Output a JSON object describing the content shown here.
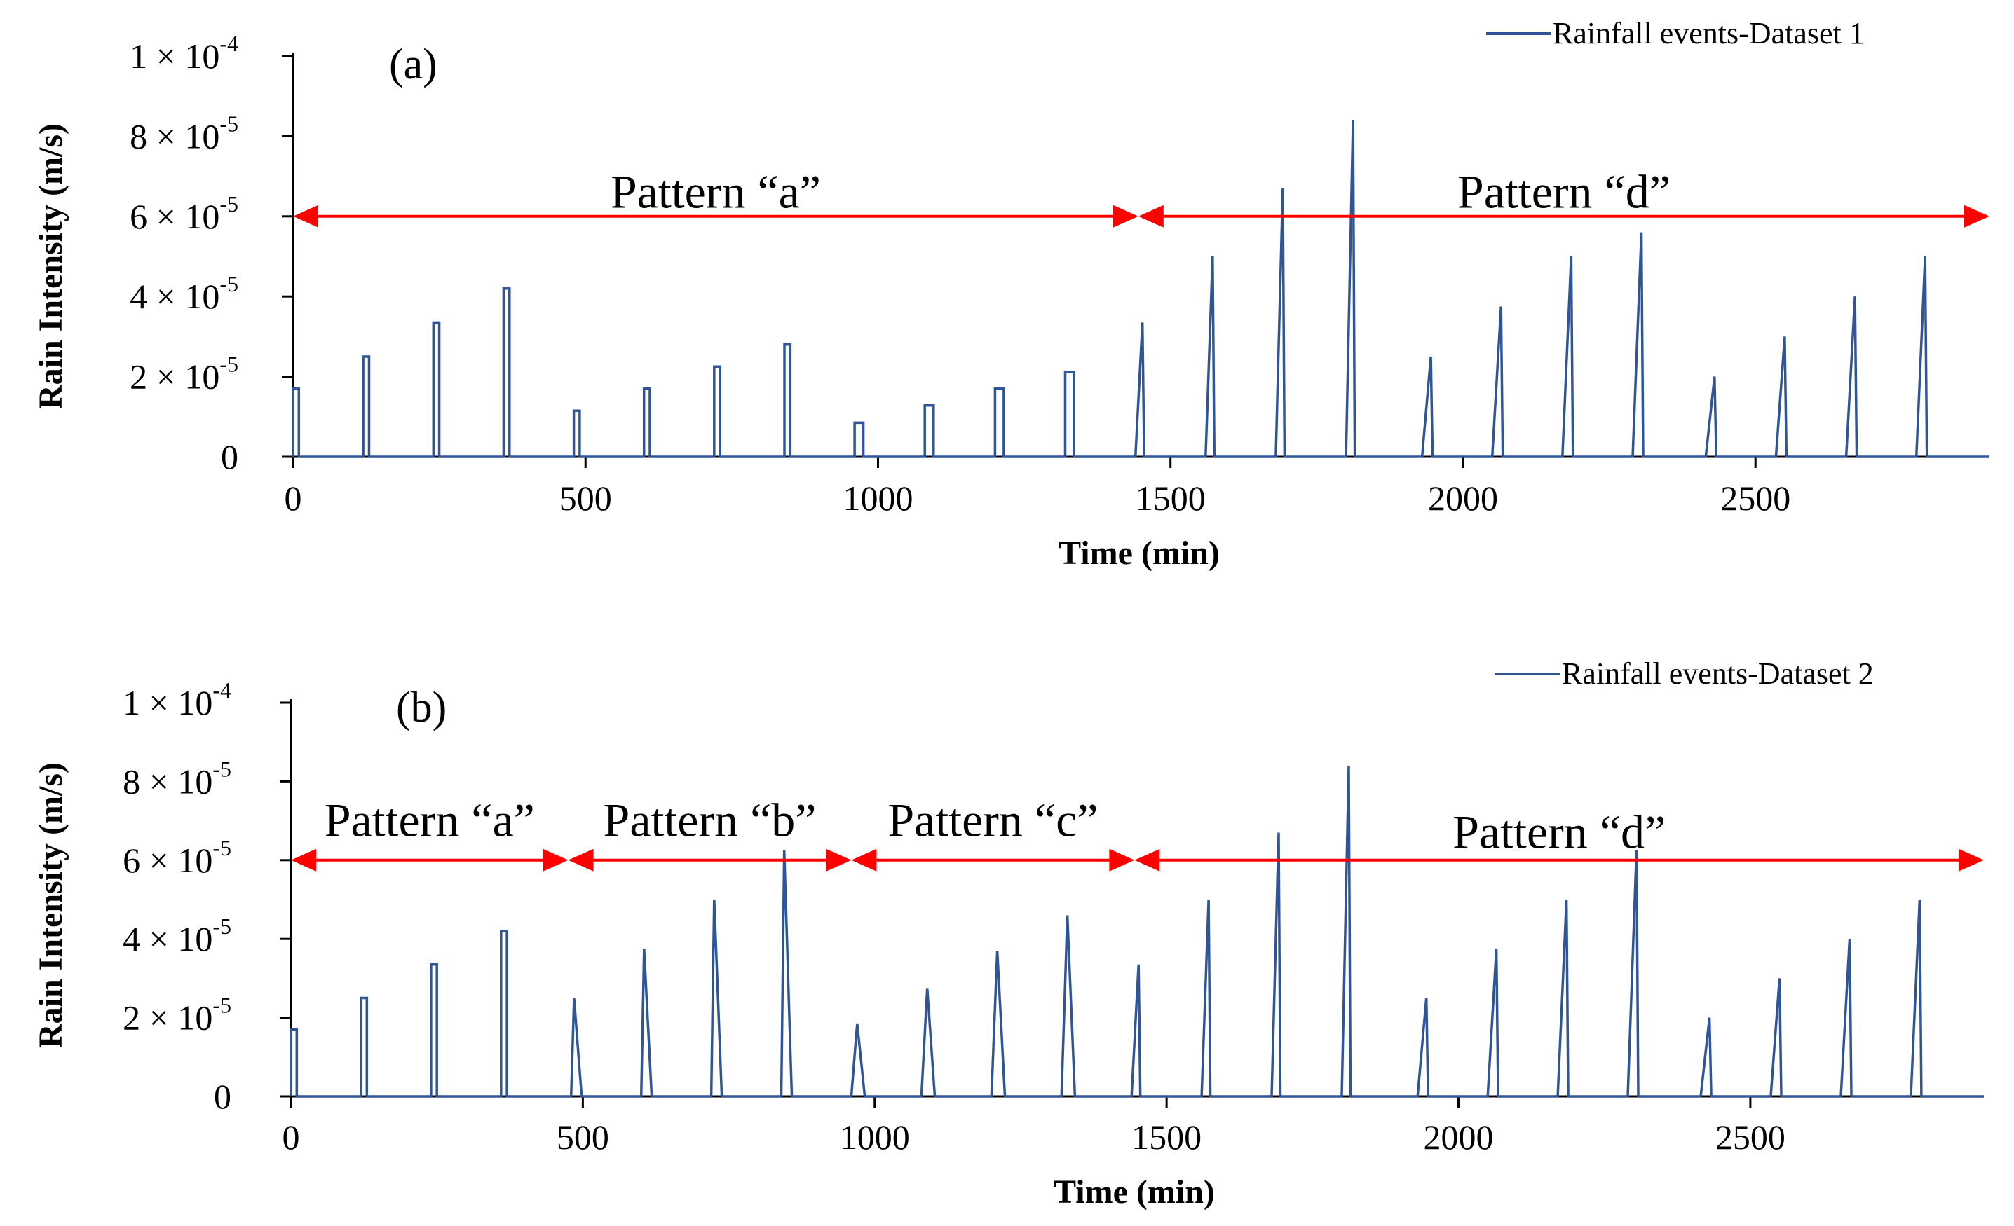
{
  "chart_data": [
    {
      "type": "line",
      "panel_label": "(a)",
      "xlabel": "Time (min)",
      "ylabel": "Rain Intensity (m/s)",
      "xlim": [
        0,
        2900
      ],
      "ylim": [
        0,
        0.0001
      ],
      "x_ticks": [
        "0",
        "500",
        "1000",
        "1500",
        "2000",
        "2500"
      ],
      "y_ticks": [
        {
          "base": "0",
          "exp": ""
        },
        {
          "base": "2 × 10",
          "exp": "-5"
        },
        {
          "base": "4 × 10",
          "exp": "-5"
        },
        {
          "base": "6 × 10",
          "exp": "-5"
        },
        {
          "base": "8 × 10",
          "exp": "-5"
        },
        {
          "base": "1 × 10",
          "exp": "-4"
        }
      ],
      "legend": "Rainfall events-Dataset 1",
      "series_color": "#2f5597",
      "annotation_color": "#ff0000",
      "series": [
        {
          "name": "Rainfall events-Dataset 1",
          "events": [
            {
              "start": 0,
              "peak_time": 0,
              "peak": 1.7e-05,
              "end": 10,
              "shape": "rect"
            },
            {
              "start": 120,
              "peak_time": 120,
              "peak": 2.5e-05,
              "end": 130,
              "shape": "rect"
            },
            {
              "start": 240,
              "peak_time": 240,
              "peak": 3.35e-05,
              "end": 250,
              "shape": "rect"
            },
            {
              "start": 360,
              "peak_time": 360,
              "peak": 4.2e-05,
              "end": 370,
              "shape": "rect"
            },
            {
              "start": 480,
              "peak_time": 480,
              "peak": 1.15e-05,
              "end": 490,
              "shape": "rect"
            },
            {
              "start": 600,
              "peak_time": 600,
              "peak": 1.7e-05,
              "end": 610,
              "shape": "rect"
            },
            {
              "start": 720,
              "peak_time": 720,
              "peak": 2.25e-05,
              "end": 730,
              "shape": "rect"
            },
            {
              "start": 840,
              "peak_time": 840,
              "peak": 2.8e-05,
              "end": 850,
              "shape": "rect"
            },
            {
              "start": 960,
              "peak_time": 960,
              "peak": 8.5e-06,
              "end": 975,
              "shape": "rect"
            },
            {
              "start": 1080,
              "peak_time": 1080,
              "peak": 1.28e-05,
              "end": 1095,
              "shape": "rect"
            },
            {
              "start": 1200,
              "peak_time": 1200,
              "peak": 1.7e-05,
              "end": 1215,
              "shape": "rect"
            },
            {
              "start": 1320,
              "peak_time": 1320,
              "peak": 2.12e-05,
              "end": 1335,
              "shape": "rect"
            },
            {
              "start": 1440,
              "peak_time": 1452,
              "peak": 3.35e-05,
              "end": 1455,
              "shape": "tri"
            },
            {
              "start": 1560,
              "peak_time": 1572,
              "peak": 5e-05,
              "end": 1575,
              "shape": "tri"
            },
            {
              "start": 1680,
              "peak_time": 1692,
              "peak": 6.7e-05,
              "end": 1695,
              "shape": "tri"
            },
            {
              "start": 1800,
              "peak_time": 1812,
              "peak": 8.4e-05,
              "end": 1815,
              "shape": "tri"
            },
            {
              "start": 1930,
              "peak_time": 1945,
              "peak": 2.5e-05,
              "end": 1948,
              "shape": "tri"
            },
            {
              "start": 2050,
              "peak_time": 2065,
              "peak": 3.75e-05,
              "end": 2068,
              "shape": "tri"
            },
            {
              "start": 2170,
              "peak_time": 2185,
              "peak": 5e-05,
              "end": 2188,
              "shape": "tri"
            },
            {
              "start": 2290,
              "peak_time": 2305,
              "peak": 5.6e-05,
              "end": 2308,
              "shape": "tri"
            },
            {
              "start": 2415,
              "peak_time": 2430,
              "peak": 2e-05,
              "end": 2433,
              "shape": "tri"
            },
            {
              "start": 2535,
              "peak_time": 2550,
              "peak": 3e-05,
              "end": 2553,
              "shape": "tri"
            },
            {
              "start": 2655,
              "peak_time": 2670,
              "peak": 4e-05,
              "end": 2673,
              "shape": "tri"
            },
            {
              "start": 2775,
              "peak_time": 2790,
              "peak": 5e-05,
              "end": 2793,
              "shape": "tri"
            }
          ]
        }
      ],
      "annotations": [
        {
          "label": "Pattern “a”",
          "from": 0,
          "to": 1445,
          "y": 6e-05,
          "label_y": 6.6e-05
        },
        {
          "label": "Pattern “d”",
          "from": 1445,
          "to": 2900,
          "y": 6e-05,
          "label_y": 6.6e-05
        }
      ]
    },
    {
      "type": "line",
      "panel_label": "(b)",
      "xlabel": "Time (min)",
      "ylabel": "Rain Intensity (m/s)",
      "xlim": [
        0,
        2900
      ],
      "ylim": [
        0,
        0.0001
      ],
      "x_ticks": [
        "0",
        "500",
        "1000",
        "1500",
        "2000",
        "2500"
      ],
      "y_ticks": [
        {
          "base": "0",
          "exp": ""
        },
        {
          "base": "2 × 10",
          "exp": "-5"
        },
        {
          "base": "4 × 10",
          "exp": "-5"
        },
        {
          "base": "6 × 10",
          "exp": "-5"
        },
        {
          "base": "8 × 10",
          "exp": "-5"
        },
        {
          "base": "1 × 10",
          "exp": "-4"
        }
      ],
      "legend": "Rainfall events-Dataset 2",
      "series_color": "#2f5597",
      "annotation_color": "#ff0000",
      "series": [
        {
          "name": "Rainfall events-Dataset 2",
          "events": [
            {
              "start": 0,
              "peak_time": 0,
              "peak": 1.7e-05,
              "end": 10,
              "shape": "rect"
            },
            {
              "start": 120,
              "peak_time": 120,
              "peak": 2.5e-05,
              "end": 130,
              "shape": "rect"
            },
            {
              "start": 240,
              "peak_time": 240,
              "peak": 3.35e-05,
              "end": 250,
              "shape": "rect"
            },
            {
              "start": 360,
              "peak_time": 360,
              "peak": 4.2e-05,
              "end": 370,
              "shape": "rect"
            },
            {
              "start": 480,
              "peak_time": 485,
              "peak": 2.5e-05,
              "end": 498,
              "shape": "tri"
            },
            {
              "start": 600,
              "peak_time": 605,
              "peak": 3.75e-05,
              "end": 618,
              "shape": "tri"
            },
            {
              "start": 720,
              "peak_time": 725,
              "peak": 5e-05,
              "end": 738,
              "shape": "tri"
            },
            {
              "start": 840,
              "peak_time": 845,
              "peak": 6.25e-05,
              "end": 858,
              "shape": "tri"
            },
            {
              "start": 960,
              "peak_time": 970,
              "peak": 1.85e-05,
              "end": 983,
              "shape": "tri"
            },
            {
              "start": 1080,
              "peak_time": 1090,
              "peak": 2.75e-05,
              "end": 1103,
              "shape": "tri"
            },
            {
              "start": 1200,
              "peak_time": 1210,
              "peak": 3.7e-05,
              "end": 1223,
              "shape": "tri"
            },
            {
              "start": 1320,
              "peak_time": 1330,
              "peak": 4.6e-05,
              "end": 1343,
              "shape": "tri"
            },
            {
              "start": 1440,
              "peak_time": 1452,
              "peak": 3.35e-05,
              "end": 1455,
              "shape": "tri"
            },
            {
              "start": 1560,
              "peak_time": 1572,
              "peak": 5e-05,
              "end": 1575,
              "shape": "tri"
            },
            {
              "start": 1680,
              "peak_time": 1692,
              "peak": 6.7e-05,
              "end": 1695,
              "shape": "tri"
            },
            {
              "start": 1800,
              "peak_time": 1812,
              "peak": 8.4e-05,
              "end": 1815,
              "shape": "tri"
            },
            {
              "start": 1930,
              "peak_time": 1945,
              "peak": 2.5e-05,
              "end": 1948,
              "shape": "tri"
            },
            {
              "start": 2050,
              "peak_time": 2065,
              "peak": 3.75e-05,
              "end": 2068,
              "shape": "tri"
            },
            {
              "start": 2170,
              "peak_time": 2185,
              "peak": 5e-05,
              "end": 2188,
              "shape": "tri"
            },
            {
              "start": 2290,
              "peak_time": 2305,
              "peak": 6.25e-05,
              "end": 2308,
              "shape": "tri"
            },
            {
              "start": 2415,
              "peak_time": 2430,
              "peak": 2e-05,
              "end": 2433,
              "shape": "tri"
            },
            {
              "start": 2535,
              "peak_time": 2550,
              "peak": 3e-05,
              "end": 2553,
              "shape": "tri"
            },
            {
              "start": 2655,
              "peak_time": 2670,
              "peak": 4e-05,
              "end": 2673,
              "shape": "tri"
            },
            {
              "start": 2775,
              "peak_time": 2790,
              "peak": 5e-05,
              "end": 2793,
              "shape": "tri"
            }
          ]
        }
      ],
      "annotations": [
        {
          "label": "Pattern “a”",
          "from": 0,
          "to": 475,
          "y": 6e-05,
          "label_y": 7e-05
        },
        {
          "label": "Pattern “b”",
          "from": 475,
          "to": 960,
          "y": 6e-05,
          "label_y": 7e-05
        },
        {
          "label": "Pattern “c”",
          "from": 960,
          "to": 1445,
          "y": 6e-05,
          "label_y": 7e-05
        },
        {
          "label": "Pattern “d”",
          "from": 1445,
          "to": 2900,
          "y": 6e-05,
          "label_y": 6.7e-05
        }
      ]
    }
  ]
}
